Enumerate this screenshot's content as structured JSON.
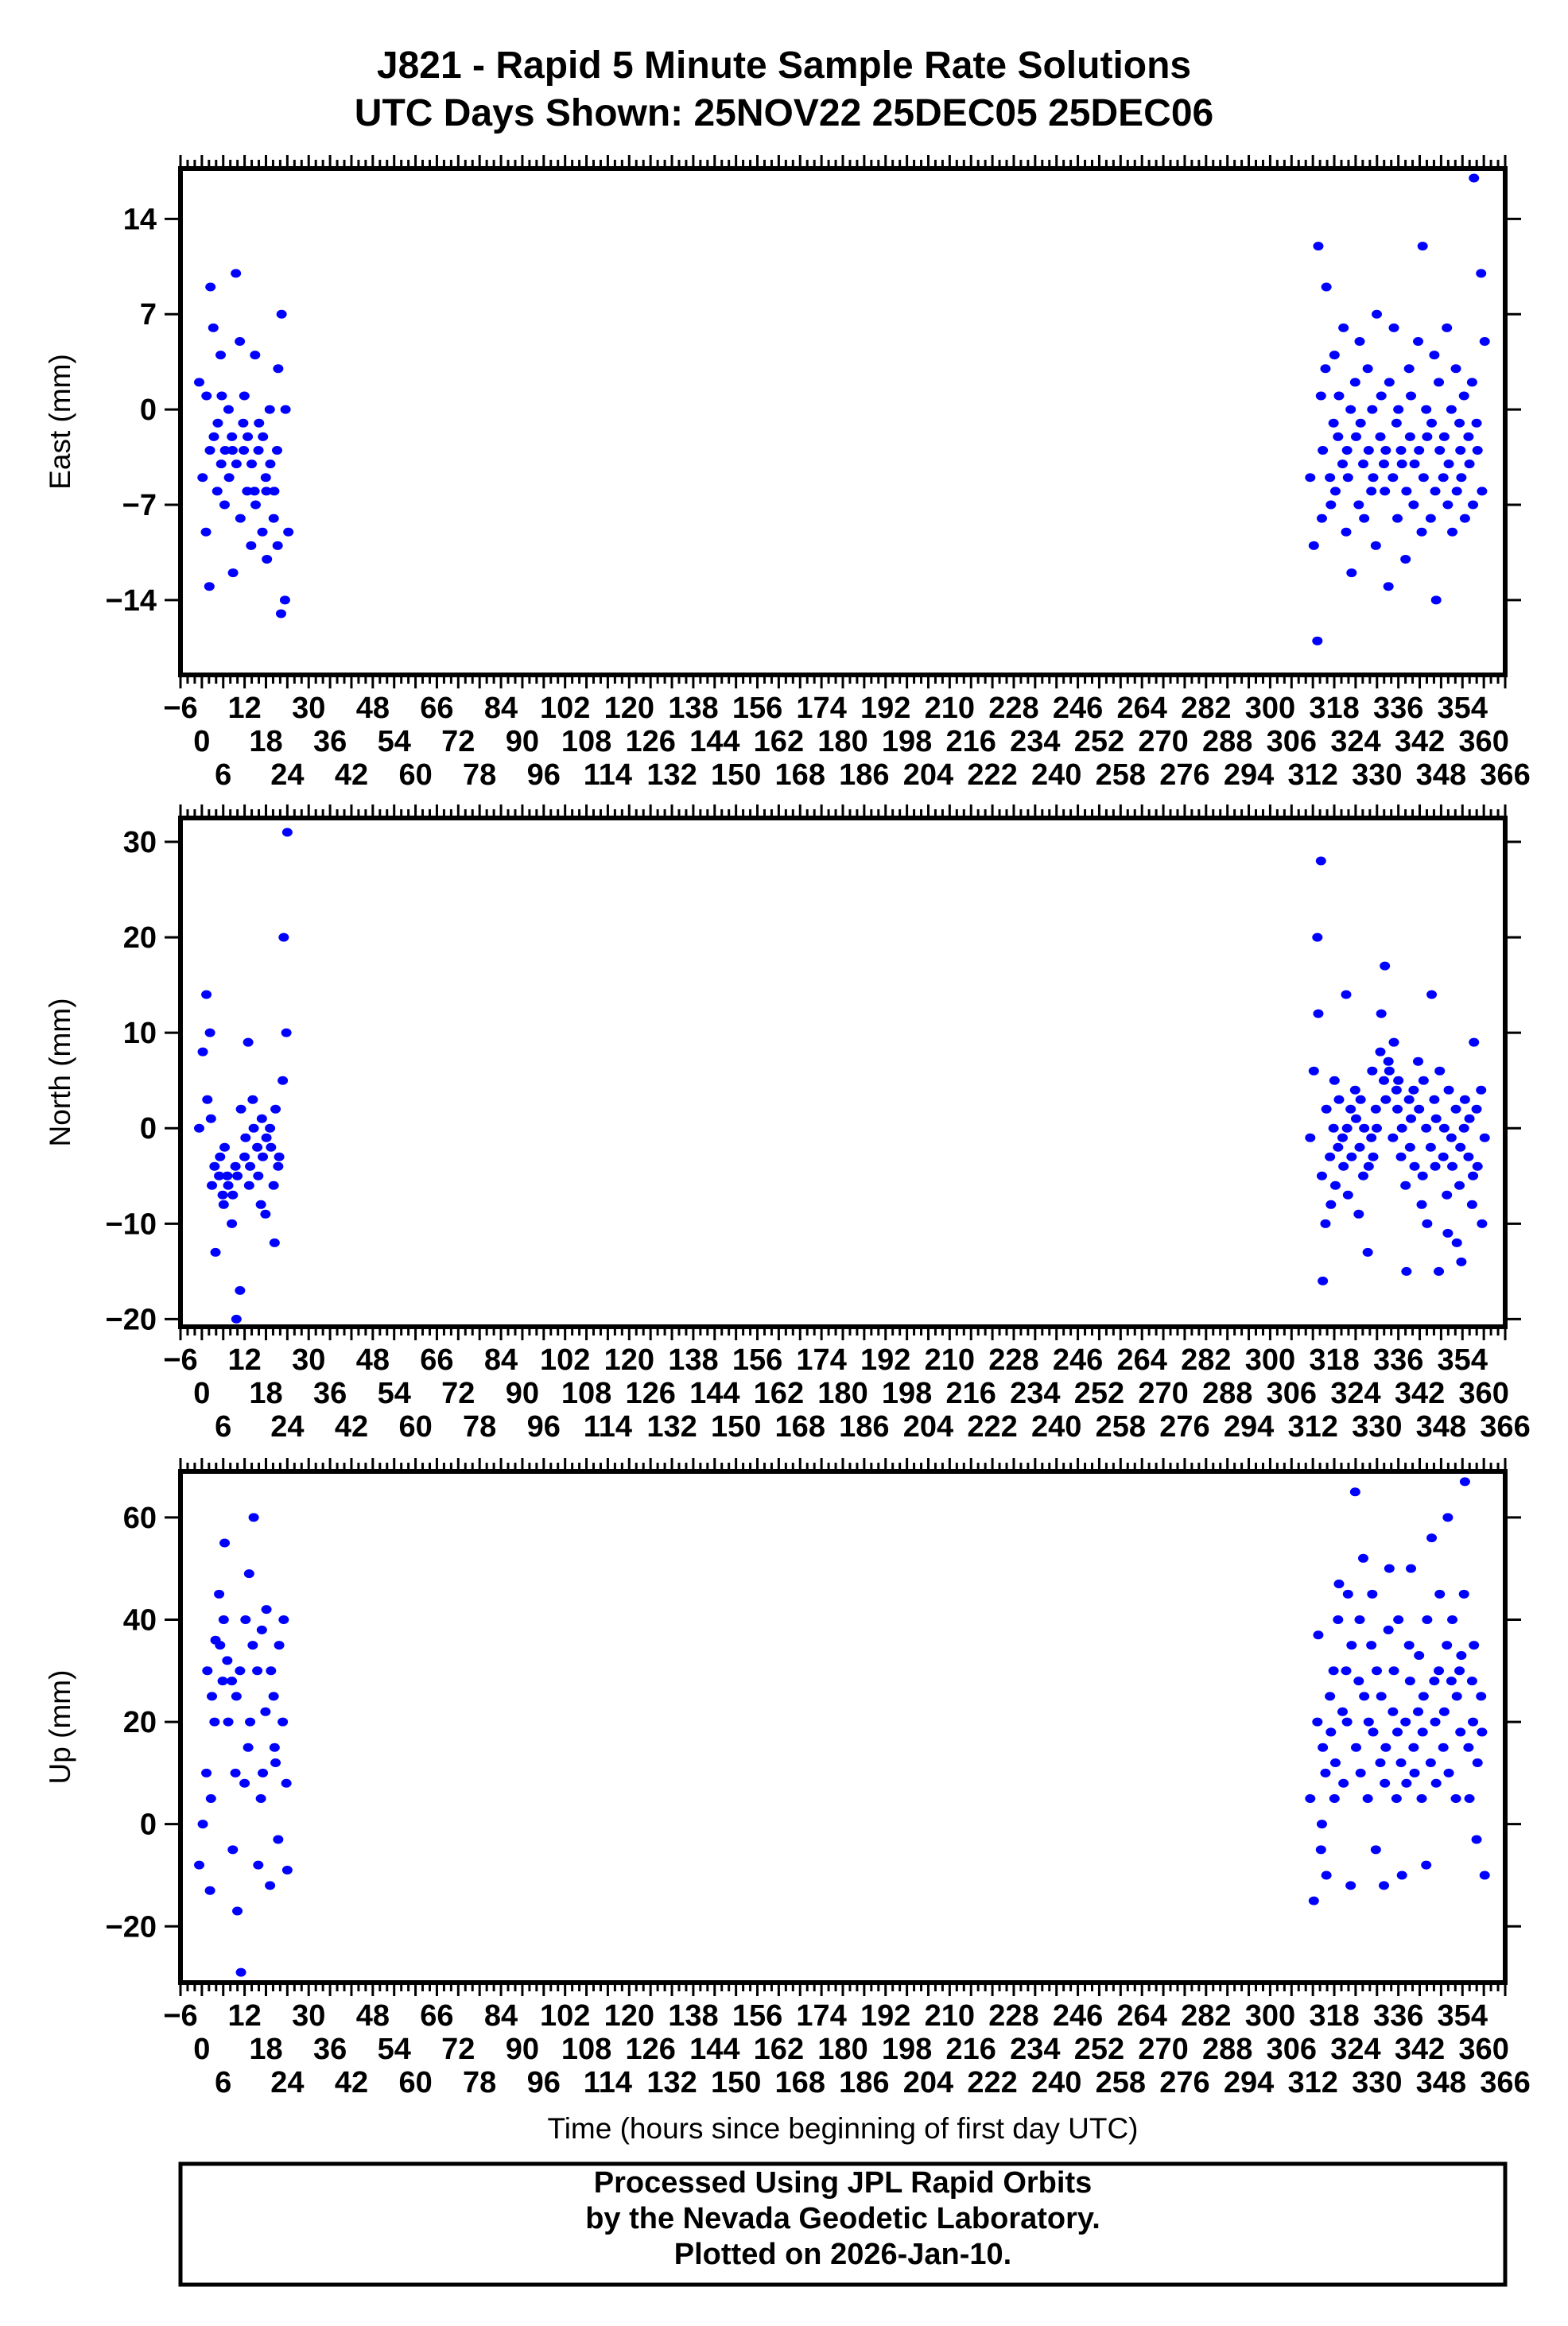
{
  "chart_data": {
    "type": "scatter",
    "title": "J821 - Rapid 5 Minute Sample Rate Solutions",
    "subtitle": "UTC Days Shown:  25NOV22 25DEC05 25DEC06",
    "xlabel": "Time (hours since beginning of first day UTC)",
    "xlim": [
      -6,
      366
    ],
    "x_ticks": {
      "start": -6,
      "end": 366,
      "step": 6,
      "minor_step": 2
    },
    "marker_color": "#0000ff",
    "grid": false,
    "panels": [
      {
        "name": "east",
        "ylabel": "East (mm)",
        "ylim": [
          -19.5,
          17.7
        ],
        "yticks": [
          14,
          7,
          0,
          -7,
          -14
        ],
        "segments": [
          {
            "x_range": [
              0,
              24
            ],
            "values": [
              2,
              -5,
              -9,
              -13,
              1,
              -3,
              6,
              9,
              -2,
              -6,
              4,
              -1,
              -4,
              -7,
              1,
              -3,
              0,
              -2,
              -5,
              -3,
              10,
              -12,
              -4,
              5,
              -1,
              -8,
              -3,
              -6,
              1,
              -2,
              -10,
              -6,
              -4,
              4,
              -3,
              -7,
              -1,
              -9,
              -5,
              -2,
              -6,
              0,
              -11,
              -4,
              -8,
              -3,
              -6,
              -10,
              -15,
              3,
              7,
              -14,
              -9,
              0
            ]
          },
          {
            "x_range": [
              312,
              360
            ],
            "values": [
              -5,
              -10,
              -17,
              1,
              12,
              -8,
              3,
              -3,
              9,
              -5,
              -1,
              -7,
              4,
              -2,
              -6,
              1,
              -4,
              -9,
              6,
              -3,
              0,
              -5,
              -12,
              2,
              -7,
              -2,
              5,
              -4,
              -1,
              -8,
              3,
              -6,
              -3,
              0,
              -10,
              -5,
              7,
              -2,
              -4,
              1,
              -6,
              -13,
              -3,
              2,
              -5,
              -1,
              6,
              -8,
              -3,
              0,
              -4,
              -11,
              3,
              -6,
              -2,
              -7,
              1,
              -4,
              5,
              -9,
              -3,
              12,
              0,
              -5,
              -2,
              -8,
              4,
              -1,
              -6,
              2,
              -14,
              -3,
              -5,
              6,
              -2,
              -7,
              0,
              -4,
              -9,
              3,
              -1,
              -6,
              -3,
              1,
              -5,
              -8,
              -2,
              2,
              -4,
              -7,
              -1,
              17,
              -3,
              10,
              5,
              -6
            ]
          }
        ]
      },
      {
        "name": "north",
        "ylabel": "North (mm)",
        "ylim": [
          -20.8,
          32.5
        ],
        "yticks": [
          30,
          20,
          10,
          0,
          -10,
          -20
        ],
        "segments": [
          {
            "x_range": [
              0,
              24
            ],
            "values": [
              0,
              8,
              14,
              10,
              3,
              1,
              -4,
              -6,
              -13,
              -5,
              -7,
              -3,
              -8,
              -5,
              -2,
              -6,
              -10,
              -4,
              -7,
              -20,
              -17,
              -5,
              2,
              -3,
              9,
              -1,
              -6,
              3,
              -4,
              0,
              -2,
              -8,
              -5,
              1,
              -9,
              -3,
              -1,
              0,
              -6,
              -2,
              -12,
              -4,
              2,
              -3,
              5,
              10,
              20,
              31
            ]
          },
          {
            "x_range": [
              312,
              360
            ],
            "values": [
              -1,
              6,
              20,
              28,
              12,
              -5,
              -10,
              -16,
              2,
              -3,
              0,
              -8,
              5,
              -2,
              -6,
              3,
              -1,
              14,
              -4,
              0,
              2,
              -7,
              -3,
              4,
              -9,
              1,
              -2,
              -5,
              3,
              0,
              -13,
              -1,
              -4,
              6,
              2,
              -3,
              0,
              8,
              5,
              12,
              17,
              7,
              3,
              6,
              -1,
              4,
              9,
              2,
              -3,
              5,
              0,
              -6,
              3,
              -15,
              -2,
              4,
              1,
              -4,
              7,
              -8,
              2,
              -5,
              0,
              5,
              -10,
              -2,
              3,
              14,
              -4,
              -15,
              1,
              6,
              -3,
              -7,
              0,
              -11,
              -1,
              4,
              -4,
              2,
              -6,
              -12,
              -2,
              0,
              -14,
              3,
              -3,
              -8,
              1,
              -5,
              2,
              9,
              -4,
              4,
              -1,
              -10
            ]
          }
        ]
      },
      {
        "name": "up",
        "ylabel": "Up (mm)",
        "ylim": [
          -31,
          69
        ],
        "yticks": [
          60,
          40,
          20,
          0,
          -20
        ],
        "segments": [
          {
            "x_range": [
              0,
              24
            ],
            "values": [
              -8,
              0,
              10,
              -13,
              30,
              5,
              20,
              25,
              36,
              45,
              28,
              35,
              40,
              32,
              55,
              20,
              28,
              10,
              -5,
              25,
              30,
              -17,
              -29,
              8,
              15,
              40,
              49,
              35,
              20,
              60,
              30,
              5,
              -8,
              38,
              22,
              10,
              42,
              -12,
              25,
              30,
              15,
              -3,
              12,
              35,
              20,
              8,
              40,
              -9
            ]
          },
          {
            "x_range": [
              312,
              360
            ],
            "values": [
              5,
              -15,
              20,
              -5,
              37,
              0,
              10,
              15,
              -10,
              25,
              30,
              18,
              5,
              40,
              12,
              47,
              22,
              30,
              8,
              20,
              -12,
              45,
              35,
              65,
              28,
              15,
              40,
              52,
              10,
              25,
              5,
              35,
              20,
              45,
              -5,
              18,
              30,
              12,
              -12,
              25,
              8,
              38,
              15,
              50,
              22,
              5,
              30,
              18,
              12,
              40,
              -10,
              20,
              35,
              8,
              28,
              15,
              50,
              10,
              22,
              5,
              33,
              18,
              -8,
              25,
              40,
              12,
              28,
              56,
              20,
              30,
              8,
              45,
              15,
              35,
              22,
              60,
              28,
              10,
              40,
              5,
              30,
              25,
              18,
              45,
              33,
              67,
              15,
              28,
              5,
              20,
              -3,
              35,
              12,
              25,
              -10,
              18
            ]
          }
        ]
      }
    ]
  },
  "footer": {
    "line1": "Processed Using JPL Rapid Orbits",
    "line2": "by the Nevada Geodetic Laboratory.",
    "line3": "Plotted on 2026-Jan-10."
  }
}
